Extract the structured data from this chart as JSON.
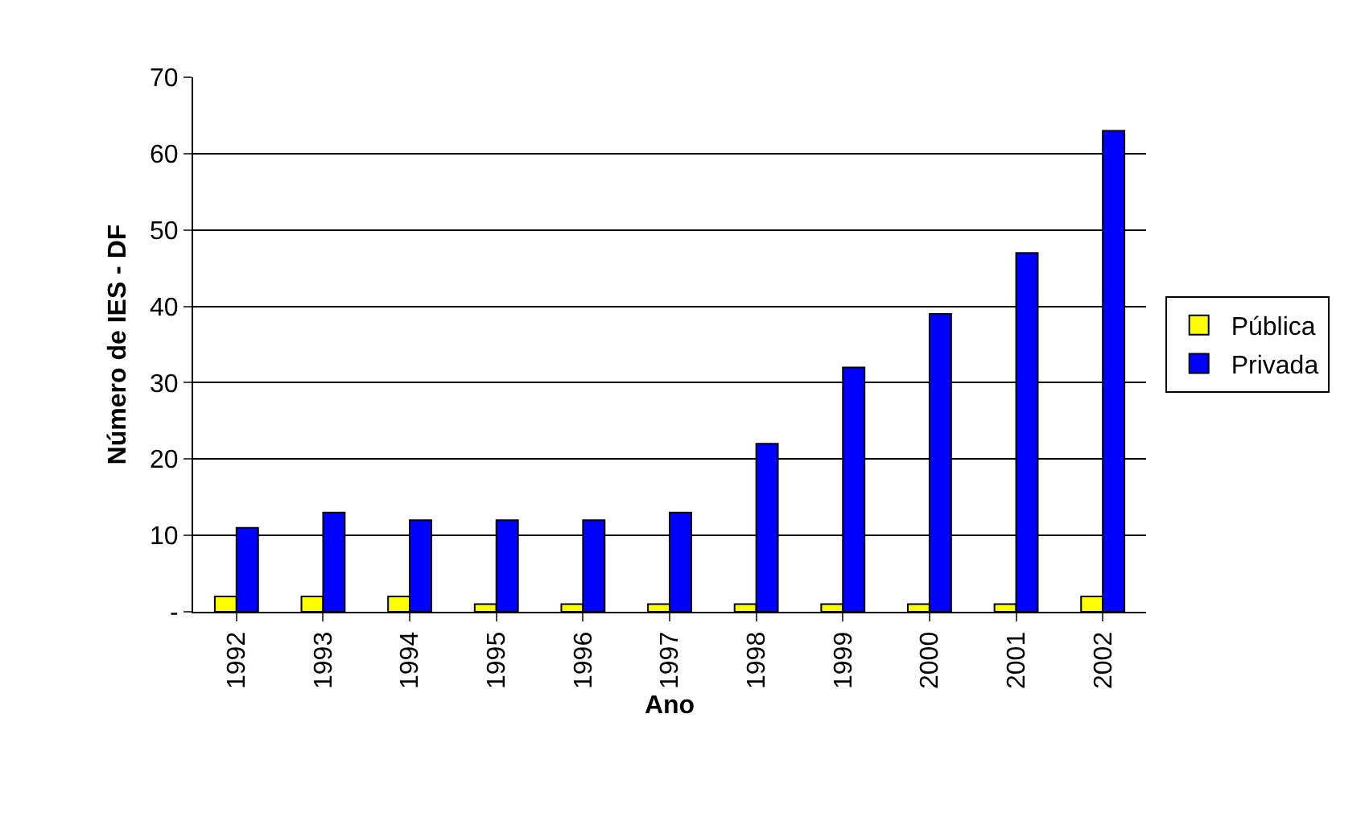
{
  "chart_data": {
    "type": "bar",
    "xlabel": "Ano",
    "ylabel": "Número de IES - DF",
    "categories": [
      "1992",
      "1993",
      "1994",
      "1995",
      "1996",
      "1997",
      "1998",
      "1999",
      "2000",
      "2001",
      "2002"
    ],
    "series": [
      {
        "name": "Pública",
        "color": "#ffff00",
        "values": [
          2,
          2,
          2,
          1,
          1,
          1,
          1,
          1,
          1,
          1,
          2
        ]
      },
      {
        "name": "Privada",
        "color": "#0000ff",
        "values": [
          11,
          13,
          12,
          12,
          12,
          13,
          22,
          32,
          39,
          47,
          63
        ]
      }
    ],
    "ylim": [
      0,
      70
    ],
    "yticks": [
      {
        "value": 0,
        "label": "-"
      },
      10,
      20,
      30,
      40,
      50,
      60,
      70
    ],
    "grid": "y",
    "legend": "right"
  }
}
